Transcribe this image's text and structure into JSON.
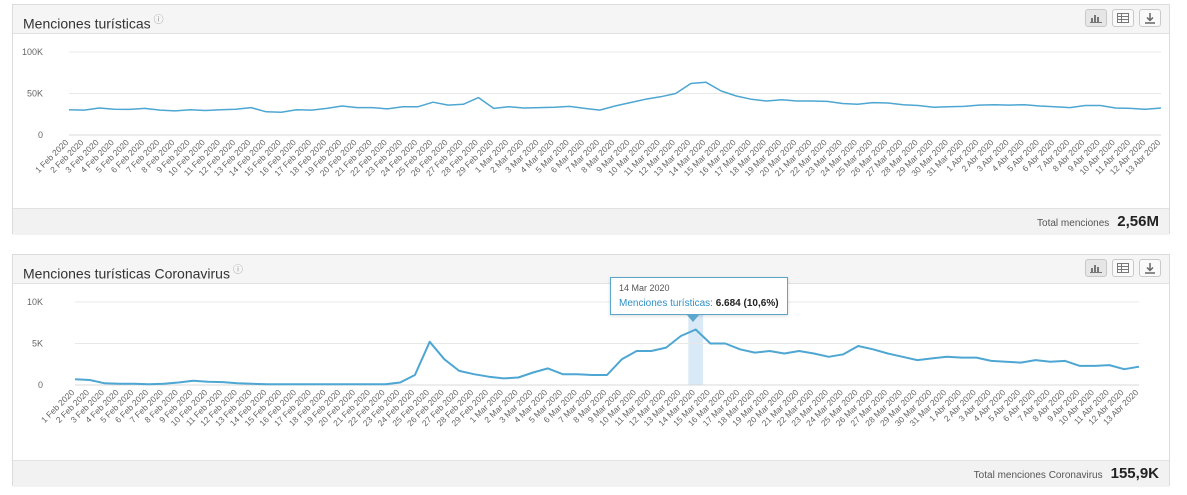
{
  "panels": [
    {
      "title": "Menciones turísticas",
      "help_icon": "help-circle-icon",
      "tools": [
        "bar-chart-icon",
        "table-icon",
        "download-icon"
      ],
      "total_label": "Total menciones",
      "total_value": "2,56M"
    },
    {
      "title": "Menciones turísticas Coronavirus",
      "help_icon": "help-circle-icon",
      "tools": [
        "bar-chart-icon",
        "table-icon",
        "download-icon"
      ],
      "total_label": "Total menciones Coronavirus",
      "total_value": "155,9K",
      "tooltip": {
        "date": "14 Mar 2020",
        "series": "Menciones turísticas:",
        "value": "6.684 (10,6%)"
      }
    }
  ],
  "colors": {
    "line": "#4ea6d2",
    "grid": "#e8e8e8",
    "highlight": "#cfe4f2"
  },
  "chart_data": [
    {
      "type": "line",
      "title": "Menciones turísticas",
      "x": [
        "1 Feb 2020",
        "2 Feb 2020",
        "3 Feb 2020",
        "4 Feb 2020",
        "5 Feb 2020",
        "6 Feb 2020",
        "7 Feb 2020",
        "8 Feb 2020",
        "9 Feb 2020",
        "10 Feb 2020",
        "11 Feb 2020",
        "12 Feb 2020",
        "13 Feb 2020",
        "14 Feb 2020",
        "15 Feb 2020",
        "16 Feb 2020",
        "17 Feb 2020",
        "18 Feb 2020",
        "19 Feb 2020",
        "20 Feb 2020",
        "21 Feb 2020",
        "22 Feb 2020",
        "23 Feb 2020",
        "24 Feb 2020",
        "25 Feb 2020",
        "26 Feb 2020",
        "27 Feb 2020",
        "28 Feb 2020",
        "29 Feb 2020",
        "1 Mar 2020",
        "2 Mar 2020",
        "3 Mar 2020",
        "4 Mar 2020",
        "5 Mar 2020",
        "6 Mar 2020",
        "7 Mar 2020",
        "8 Mar 2020",
        "9 Mar 2020",
        "10 Mar 2020",
        "11 Mar 2020",
        "12 Mar 2020",
        "13 Mar 2020",
        "14 Mar 2020",
        "15 Mar 2020",
        "16 Mar 2020",
        "17 Mar 2020",
        "18 Mar 2020",
        "19 Mar 2020",
        "20 Mar 2020",
        "21 Mar 2020",
        "22 Mar 2020",
        "23 Mar 2020",
        "24 Mar 2020",
        "25 Mar 2020",
        "26 Mar 2020",
        "27 Mar 2020",
        "28 Mar 2020",
        "29 Mar 2020",
        "30 Mar 2020",
        "31 Mar 2020",
        "1 Abr 2020",
        "2 Abr 2020",
        "3 Abr 2020",
        "4 Abr 2020",
        "5 Abr 2020",
        "6 Abr 2020",
        "7 Abr 2020",
        "8 Abr 2020",
        "9 Abr 2020",
        "10 Abr 2020",
        "11 Abr 2020",
        "12 Abr 2020",
        "13 Abr 2020"
      ],
      "series": [
        {
          "values": [
            30500,
            30000,
            32500,
            31000,
            30800,
            32000,
            30000,
            29000,
            30500,
            29500,
            30500,
            31000,
            33000,
            28000,
            27500,
            30500,
            30000,
            32000,
            35000,
            33000,
            33000,
            31500,
            34000,
            34000,
            39500,
            36000,
            37000,
            45000,
            32000,
            34000,
            32500,
            33000,
            33500,
            34500,
            32000,
            30000,
            35000,
            39000,
            43000,
            46000,
            50000,
            62000,
            63500,
            53000,
            47000,
            43000,
            41000,
            42500,
            41000,
            41000,
            40500,
            38000,
            37000,
            39000,
            38500,
            36500,
            35500,
            33500,
            34000,
            34500,
            36000,
            36500,
            36000,
            36500,
            35000,
            34000,
            33000,
            35500,
            35500,
            32500,
            32000,
            31000,
            32500
          ]
        }
      ],
      "yticks": [
        "0",
        "50K",
        "100K"
      ],
      "ylim": [
        0,
        100000
      ],
      "grid": true
    },
    {
      "type": "line",
      "title": "Menciones turísticas Coronavirus",
      "x": [
        "1 Feb 2020",
        "2 Feb 2020",
        "3 Feb 2020",
        "4 Feb 2020",
        "5 Feb 2020",
        "6 Feb 2020",
        "7 Feb 2020",
        "8 Feb 2020",
        "9 Feb 2020",
        "10 Feb 2020",
        "11 Feb 2020",
        "12 Feb 2020",
        "13 Feb 2020",
        "14 Feb 2020",
        "15 Feb 2020",
        "16 Feb 2020",
        "17 Feb 2020",
        "18 Feb 2020",
        "19 Feb 2020",
        "20 Feb 2020",
        "21 Feb 2020",
        "22 Feb 2020",
        "23 Feb 2020",
        "24 Feb 2020",
        "25 Feb 2020",
        "26 Feb 2020",
        "27 Feb 2020",
        "28 Feb 2020",
        "29 Feb 2020",
        "1 Mar 2020",
        "2 Mar 2020",
        "3 Mar 2020",
        "4 Mar 2020",
        "5 Mar 2020",
        "6 Mar 2020",
        "7 Mar 2020",
        "8 Mar 2020",
        "9 Mar 2020",
        "10 Mar 2020",
        "11 Mar 2020",
        "12 Mar 2020",
        "13 Mar 2020",
        "14 Mar 2020",
        "15 Mar 2020",
        "16 Mar 2020",
        "17 Mar 2020",
        "18 Mar 2020",
        "19 Mar 2020",
        "20 Mar 2020",
        "21 Mar 2020",
        "22 Mar 2020",
        "23 Mar 2020",
        "24 Mar 2020",
        "25 Mar 2020",
        "26 Mar 2020",
        "27 Mar 2020",
        "28 Mar 2020",
        "29 Mar 2020",
        "30 Mar 2020",
        "31 Mar 2020",
        "1 Abr 2020",
        "2 Abr 2020",
        "3 Abr 2020",
        "4 Abr 2020",
        "5 Abr 2020",
        "6 Abr 2020",
        "7 Abr 2020",
        "8 Abr 2020",
        "9 Abr 2020",
        "10 Abr 2020",
        "11 Abr 2020",
        "12 Abr 2020",
        "13 Abr 2020"
      ],
      "series": [
        {
          "values": [
            700,
            600,
            200,
            150,
            150,
            100,
            150,
            300,
            500,
            400,
            350,
            200,
            150,
            100,
            100,
            100,
            100,
            100,
            100,
            100,
            100,
            100,
            300,
            1200,
            5200,
            3100,
            1700,
            1300,
            1000,
            800,
            900,
            1500,
            2000,
            1300,
            1300,
            1200,
            1200,
            3100,
            4100,
            4100,
            4500,
            5900,
            6684,
            5000,
            5000,
            4300,
            3900,
            4100,
            3800,
            4100,
            3800,
            3400,
            3700,
            4700,
            4300,
            3800,
            3400,
            3000,
            3200,
            3400,
            3300,
            3300,
            2900,
            2800,
            2700,
            3000,
            2800,
            2900,
            2300,
            2300,
            2400,
            1900,
            2200
          ]
        }
      ],
      "yticks": [
        "0",
        "5K",
        "10K"
      ],
      "ylim": [
        0,
        10000
      ],
      "highlight_index": 42,
      "grid": true
    }
  ]
}
